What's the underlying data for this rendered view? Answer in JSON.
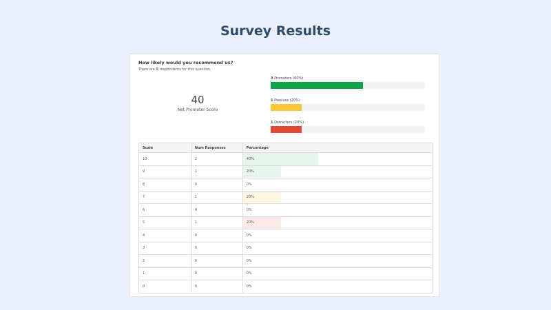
{
  "page": {
    "title": "Survey Results"
  },
  "question": {
    "text": "How likely would you recommend us?",
    "respondents_prefix": "There are ",
    "respondents_count": "5",
    "respondents_suffix": " respondents for this question."
  },
  "nps": {
    "value": "40",
    "label": "Net Promoter Score"
  },
  "categories": [
    {
      "count": "3",
      "label": " Promoters (60%)",
      "fraction": 0.6,
      "color": "#10a34a"
    },
    {
      "count": "1",
      "label": " Passives (20%)",
      "fraction": 0.2,
      "color": "#fcc63a"
    },
    {
      "count": "1",
      "label": " Detractors (20%)",
      "fraction": 0.2,
      "color": "#e04a30"
    }
  ],
  "table": {
    "headers": [
      "Scale",
      "Num Responses",
      "Percentage"
    ],
    "rows": [
      {
        "scale": "10",
        "responses": "2",
        "percentage": "40%",
        "fraction": 0.4,
        "color": "#e6f5ec"
      },
      {
        "scale": "9",
        "responses": "1",
        "percentage": "20%",
        "fraction": 0.2,
        "color": "#e6f5ec"
      },
      {
        "scale": "8",
        "responses": "0",
        "percentage": "0%",
        "fraction": 0,
        "color": "#ffffff"
      },
      {
        "scale": "7",
        "responses": "1",
        "percentage": "20%",
        "fraction": 0.2,
        "color": "#fff7e3"
      },
      {
        "scale": "6",
        "responses": "0",
        "percentage": "0%",
        "fraction": 0,
        "color": "#ffffff"
      },
      {
        "scale": "5",
        "responses": "1",
        "percentage": "20%",
        "fraction": 0.2,
        "color": "#fdeae8"
      },
      {
        "scale": "4",
        "responses": "0",
        "percentage": "0%",
        "fraction": 0,
        "color": "#ffffff"
      },
      {
        "scale": "3",
        "responses": "0",
        "percentage": "0%",
        "fraction": 0,
        "color": "#ffffff"
      },
      {
        "scale": "2",
        "responses": "0",
        "percentage": "0%",
        "fraction": 0,
        "color": "#ffffff"
      },
      {
        "scale": "1",
        "responses": "0",
        "percentage": "0%",
        "fraction": 0,
        "color": "#ffffff"
      },
      {
        "scale": "0",
        "responses": "0",
        "percentage": "0%",
        "fraction": 0,
        "color": "#ffffff"
      }
    ]
  }
}
